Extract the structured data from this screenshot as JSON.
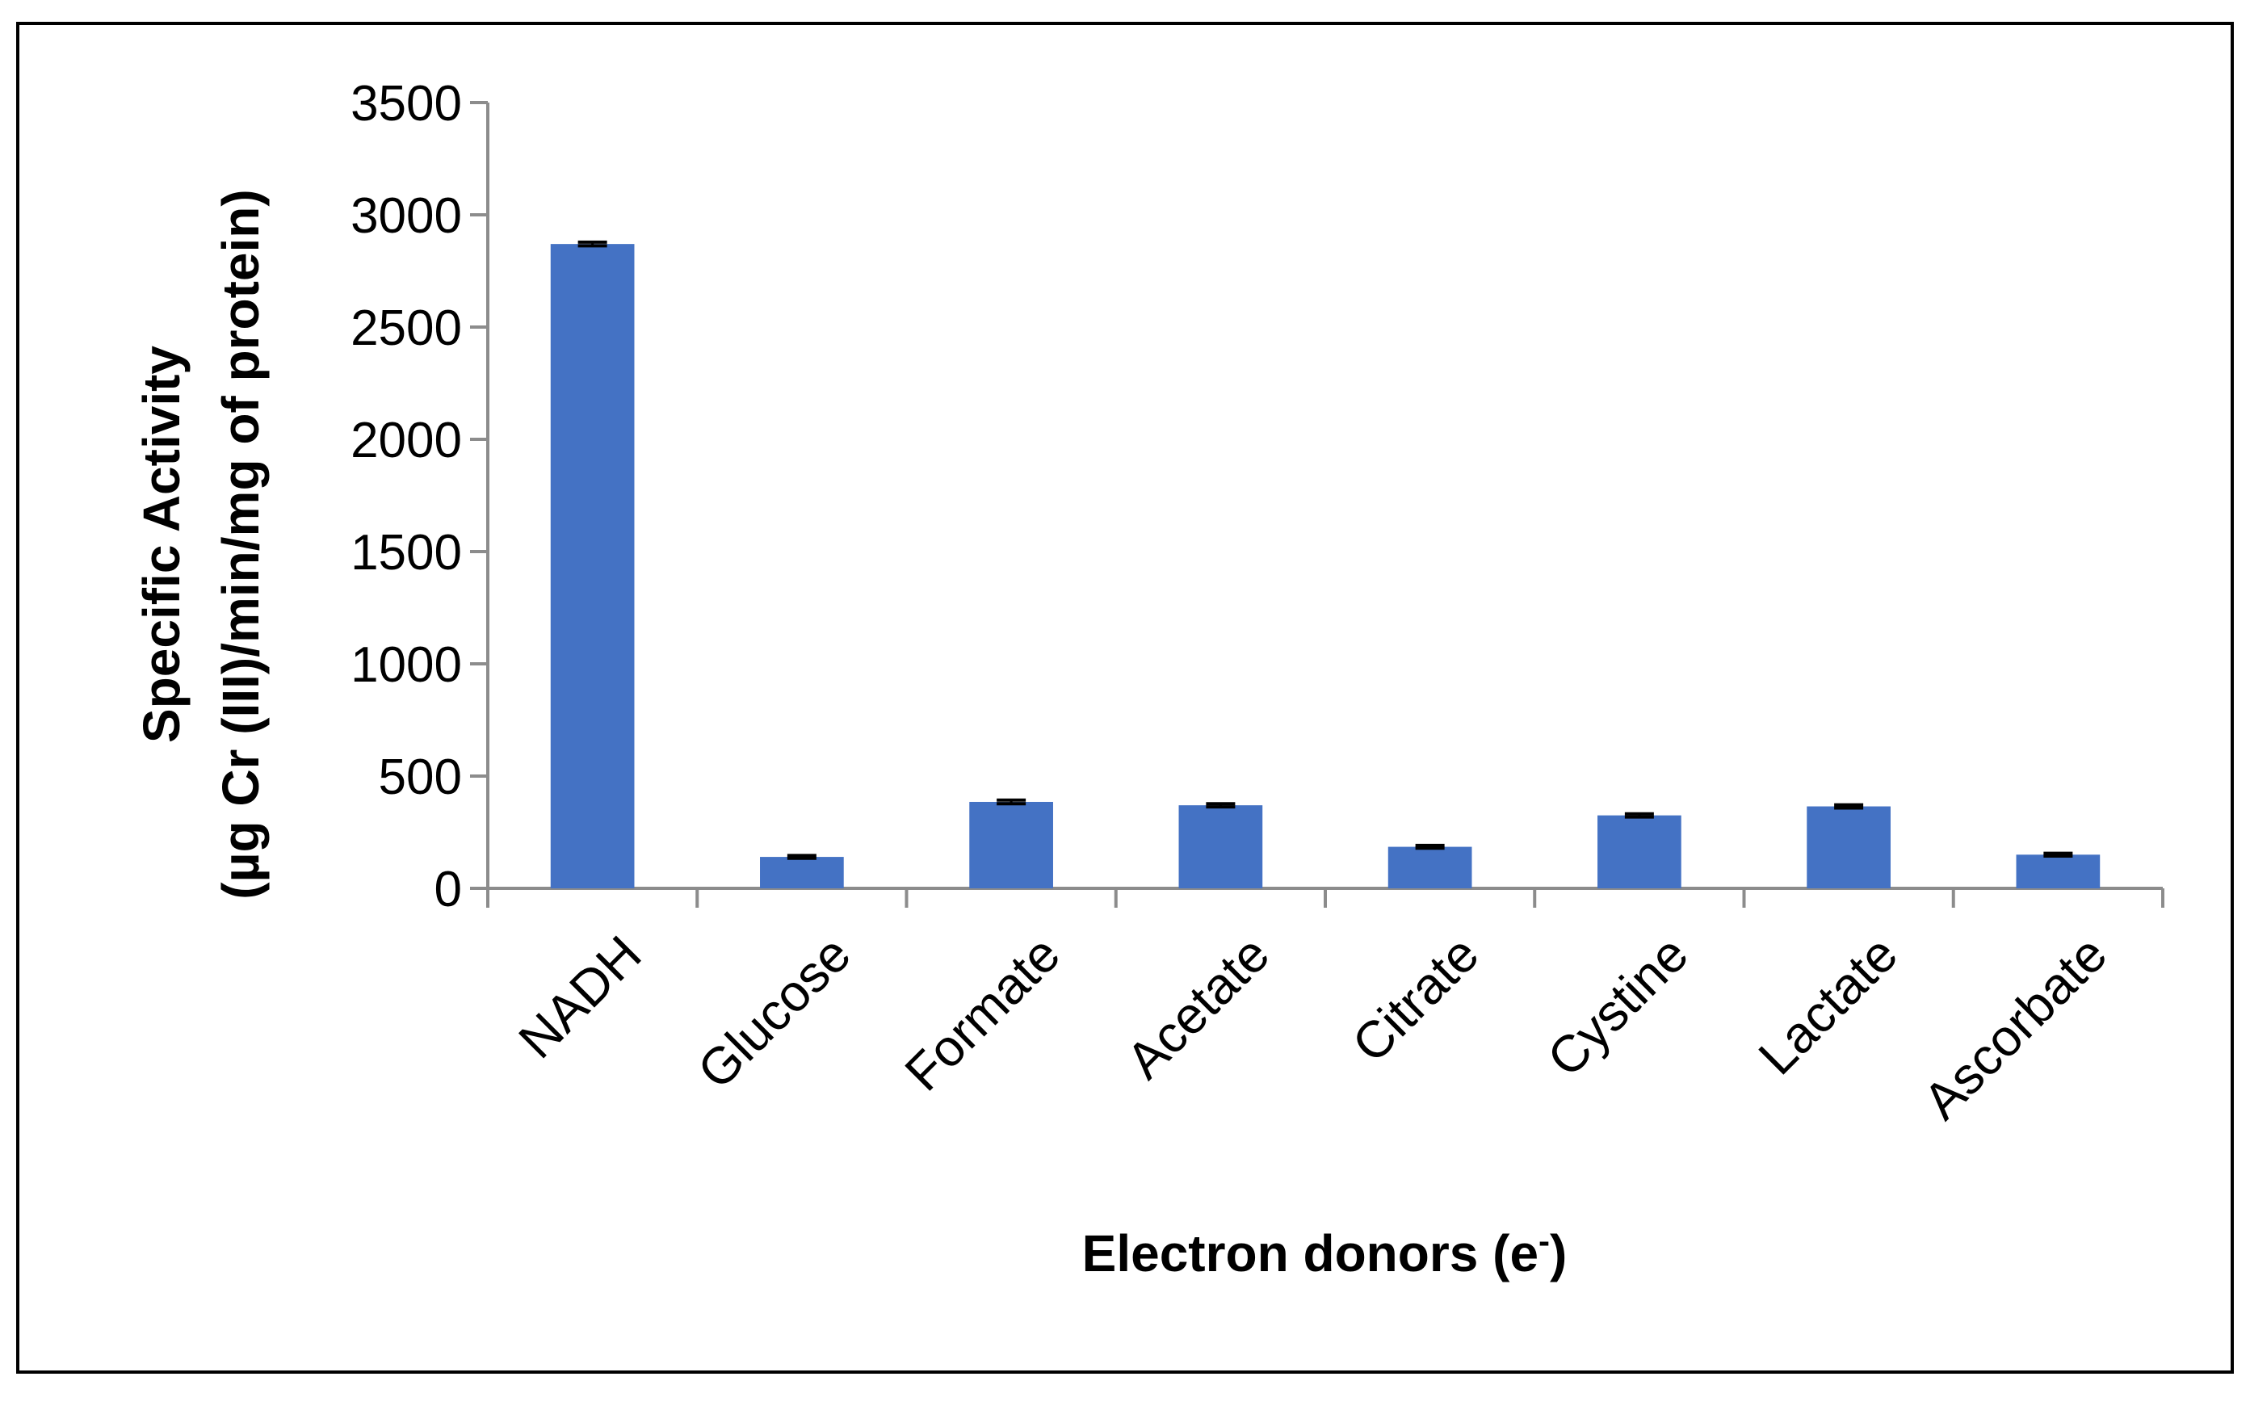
{
  "chart_data": {
    "type": "bar",
    "title": "",
    "categories": [
      "NADH",
      "Glucose",
      "Formate",
      "Acetate",
      "Citrate",
      "Cystine",
      "Lactate",
      "Ascorbate"
    ],
    "values": [
      2870,
      140,
      385,
      370,
      185,
      325,
      365,
      150
    ],
    "error": [
      8,
      6,
      8,
      7,
      6,
      7,
      7,
      6
    ],
    "ylim": [
      0,
      3500
    ],
    "yticks": [
      0,
      500,
      1000,
      1500,
      2000,
      2500,
      3000,
      3500
    ],
    "xlabel": "Electron donors (e",
    "xlabel_sup": "-",
    "xlabel_end": ")",
    "ylabel_line1": "Specific Activity",
    "ylabel_line2": "(µg Cr (III)/min/mg of protein)",
    "bar_color": "#4472C4",
    "grid": false,
    "legend": "none"
  }
}
